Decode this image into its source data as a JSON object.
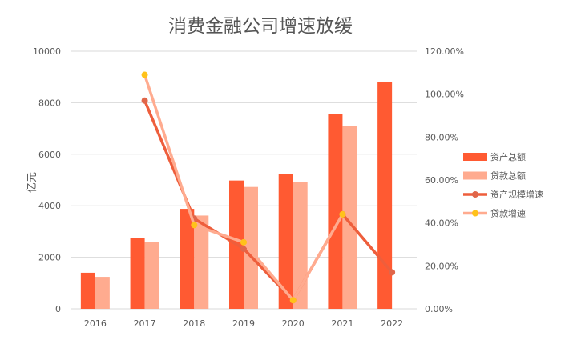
{
  "chart_data": {
    "type": "bar",
    "title": "消费金融公司增速放缓",
    "ylabel": "亿元",
    "categories": [
      "2016",
      "2017",
      "2018",
      "2019",
      "2020",
      "2021",
      "2022"
    ],
    "ylim": [
      0,
      10000
    ],
    "y_ticks": [
      "0",
      "2000",
      "4000",
      "6000",
      "8000",
      "10000"
    ],
    "y2lim": [
      0,
      1.2
    ],
    "y2_ticks": [
      "0.00%",
      "20.00%",
      "40.00%",
      "60.00%",
      "80.00%",
      "100.00%",
      "120.00%"
    ],
    "grid": true,
    "legend_position": "right",
    "series": [
      {
        "name": "资产总额",
        "type": "bar",
        "axis": "left",
        "color": "#FF5A32",
        "values": [
          1400,
          2750,
          3880,
          4980,
          5220,
          7550,
          8820
        ]
      },
      {
        "name": "贷款总额",
        "type": "bar",
        "axis": "left",
        "color": "#FFAB8F",
        "values": [
          1240,
          2590,
          3620,
          4730,
          4920,
          7110,
          null
        ]
      },
      {
        "name": "资产规模增速",
        "type": "line",
        "axis": "right",
        "color": "#EE5E3C",
        "marker_color": "#E0664A",
        "values": [
          null,
          0.97,
          0.42,
          0.28,
          0.04,
          0.44,
          0.17
        ]
      },
      {
        "name": "贷款增速",
        "type": "line",
        "axis": "right",
        "color": "#FFAB8F",
        "marker_color": "#FFC21A",
        "values": [
          null,
          1.09,
          0.39,
          0.31,
          0.04,
          0.44,
          null
        ]
      }
    ]
  }
}
